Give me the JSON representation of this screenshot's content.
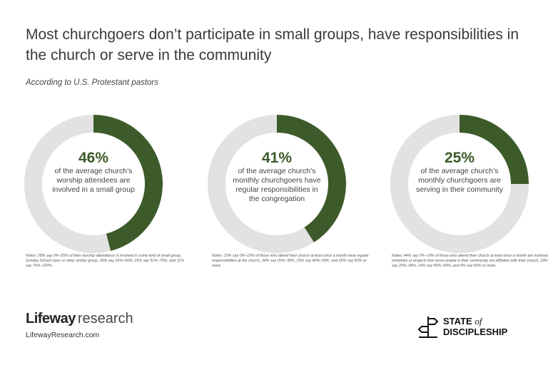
{
  "title": "Most churchgoers don’t participate in small groups, have responsibilities in the church or serve in the community",
  "subtitle": "According to U.S. Protestant pastors",
  "colors": {
    "filled": "#3d5a2a",
    "remainder": "#e2e2e2"
  },
  "chart_data": [
    {
      "type": "pie",
      "variant": "donut",
      "value": 46,
      "label": "46%",
      "description": "of the average church’s worship attendees are involved in a small group",
      "note": "Notes: 28% say 0%–25% of their worship attendance is involved in some kind of small group, Sunday School class or other similar group, 36% say 26%–50%, 25% say 51%–75%, and 11% say 76%–100%."
    },
    {
      "type": "pie",
      "variant": "donut",
      "value": 41,
      "label": "41%",
      "description": "of the average church’s monthly churchgoers have regular responsibilities in the congregation",
      "note": "Notes: 15% say 0%–19% of those who attend their church at least once a month have regular responsibilities at the church, 34% say 20%–39%, 25% say 40%–59%, and 26% say 60% or more."
    },
    {
      "type": "pie",
      "variant": "donut",
      "value": 25,
      "label": "25%",
      "description": "of the average church’s monthly churchgoers are serving in their community",
      "note": "Notes: 44% say 0%–19% of those who attend their church at least once a month are involved in ministries or projects that serve people in their community not affiliated with their church, 33% say 20%–39%, 14% say 40%–59%, and 9% say 60% or more."
    }
  ],
  "footer": {
    "brand_bold": "Lifeway",
    "brand_light": "research",
    "url": "LifewayResearch.com",
    "logo_line1": "STATE",
    "logo_of": "of",
    "logo_line2": "DISCIPLESHIP"
  }
}
